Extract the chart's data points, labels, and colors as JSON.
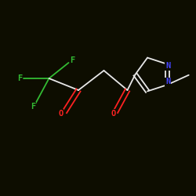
{
  "bg_color": "#0d0d00",
  "bond_color": "#e8e8e8",
  "atom_colors": {
    "F": "#33bb33",
    "O": "#ff2222",
    "N": "#4444ff",
    "C": "#e8e8e8"
  },
  "figsize": [
    2.5,
    2.5
  ],
  "dpi": 100,
  "lw": 1.3,
  "fontsize": 7.5
}
